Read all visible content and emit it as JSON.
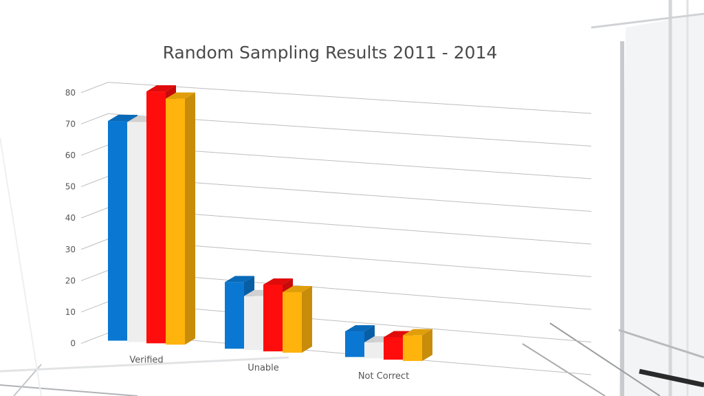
{
  "chart_data": {
    "type": "bar",
    "title": "Random Sampling Results 2011 - 2014",
    "categories": [
      "Verified",
      "Unable",
      "Not Correct"
    ],
    "series": [
      {
        "values": [
          70,
          21,
          8
        ],
        "color": "#0a78d2"
      },
      {
        "values": [
          70,
          17,
          5
        ],
        "color": "#eeeeee"
      },
      {
        "values": [
          80,
          21,
          7
        ],
        "color": "#ff0d0d"
      },
      {
        "values": [
          78,
          19,
          8
        ],
        "color": "#ffb30d"
      }
    ],
    "yticks": [
      0,
      10,
      20,
      30,
      40,
      50,
      60,
      70,
      80
    ],
    "ylim": [
      0,
      80
    ],
    "grid": true,
    "legend": "none",
    "style": "3d-clustered-column"
  }
}
